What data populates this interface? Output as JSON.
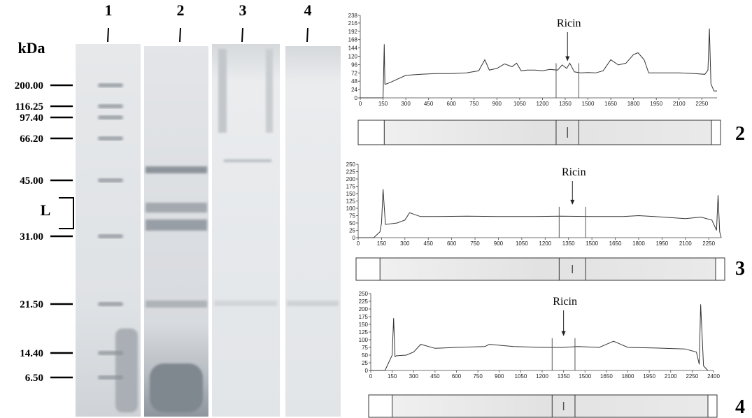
{
  "gel": {
    "unit_label": "kDa",
    "lanes": [
      "1",
      "2",
      "3",
      "4"
    ],
    "markers": [
      {
        "value": 200,
        "label": "200.00"
      },
      {
        "value": 116.25,
        "label": "116.25"
      },
      {
        "value": 97.4,
        "label": "97.40"
      },
      {
        "value": 66.2,
        "label": "66.20"
      },
      {
        "value": 45,
        "label": "45.00"
      },
      {
        "value": 31,
        "label": "31.00"
      },
      {
        "value": 21.5,
        "label": "21.50"
      },
      {
        "value": 14.4,
        "label": "14.40"
      },
      {
        "value": 6.5,
        "label": "6.50"
      }
    ],
    "bracket_label": "L"
  },
  "chart_data": [
    {
      "type": "line",
      "panel_label": "2",
      "annotation": "Ricin",
      "ricin_region": [
        1290,
        1440
      ],
      "xlim": [
        0,
        2350
      ],
      "xticks": [
        0,
        150,
        300,
        450,
        600,
        750,
        900,
        1050,
        1200,
        1350,
        1500,
        1650,
        1800,
        1950,
        2100,
        2250
      ],
      "ylim": [
        0,
        238
      ],
      "yticks": [
        0,
        24,
        48,
        72,
        96,
        120,
        144,
        168,
        192,
        216,
        238
      ],
      "x": [
        0,
        150,
        158,
        162,
        170,
        200,
        300,
        400,
        500,
        600,
        700,
        780,
        820,
        850,
        900,
        950,
        1000,
        1030,
        1060,
        1100,
        1150,
        1200,
        1250,
        1300,
        1330,
        1360,
        1380,
        1410,
        1450,
        1500,
        1550,
        1600,
        1650,
        1700,
        1750,
        1800,
        1830,
        1870,
        1900,
        2000,
        2100,
        2200,
        2270,
        2290,
        2300,
        2310,
        2330,
        2350
      ],
      "series": [
        {
          "color": "#333333",
          "values": [
            0,
            0,
            155,
            40,
            40,
            45,
            65,
            68,
            70,
            70,
            72,
            78,
            110,
            80,
            85,
            98,
            90,
            100,
            78,
            80,
            80,
            78,
            82,
            80,
            95,
            85,
            100,
            75,
            72,
            73,
            72,
            78,
            110,
            95,
            100,
            125,
            130,
            110,
            72,
            72,
            72,
            70,
            68,
            80,
            200,
            40,
            20,
            20
          ]
        }
      ]
    },
    {
      "type": "line",
      "panel_label": "3",
      "annotation": "Ricin",
      "ricin_region": [
        1290,
        1460
      ],
      "xlim": [
        0,
        2330
      ],
      "xticks": [
        0,
        150,
        300,
        450,
        600,
        750,
        900,
        1050,
        1200,
        1350,
        1500,
        1650,
        1800,
        1950,
        2100,
        2250
      ],
      "ylim": [
        0,
        250
      ],
      "yticks": [
        0,
        25,
        50,
        75,
        100,
        125,
        150,
        175,
        200,
        225,
        250
      ],
      "x": [
        0,
        100,
        140,
        150,
        160,
        175,
        250,
        300,
        330,
        400,
        500,
        700,
        900,
        1100,
        1300,
        1500,
        1700,
        1800,
        1900,
        2100,
        2200,
        2270,
        2300,
        2310,
        2320,
        2330
      ],
      "series": [
        {
          "color": "#333333",
          "values": [
            0,
            0,
            20,
            50,
            165,
            45,
            50,
            60,
            85,
            72,
            72,
            73,
            72,
            72,
            73,
            72,
            72,
            75,
            72,
            65,
            70,
            60,
            25,
            145,
            20,
            0
          ]
        }
      ]
    },
    {
      "type": "line",
      "panel_label": "4",
      "annotation": "Ricin",
      "ricin_region": [
        1270,
        1430
      ],
      "xlim": [
        0,
        2400
      ],
      "xticks": [
        0,
        150,
        300,
        450,
        600,
        750,
        900,
        1050,
        1200,
        1350,
        1500,
        1650,
        1800,
        1950,
        2100,
        2250,
        2400
      ],
      "ylim": [
        0,
        250
      ],
      "yticks": [
        0,
        25,
        50,
        75,
        100,
        125,
        150,
        175,
        200,
        225,
        250
      ],
      "x": [
        0,
        100,
        150,
        160,
        170,
        180,
        250,
        300,
        350,
        450,
        600,
        800,
        830,
        1000,
        1200,
        1350,
        1450,
        1600,
        1650,
        1700,
        1800,
        2000,
        2200,
        2280,
        2300,
        2310,
        2330,
        2360
      ],
      "series": [
        {
          "color": "#333333",
          "values": [
            0,
            0,
            50,
            170,
            45,
            48,
            50,
            60,
            85,
            72,
            75,
            78,
            85,
            78,
            75,
            75,
            78,
            75,
            85,
            95,
            75,
            73,
            70,
            60,
            20,
            215,
            15,
            0
          ]
        }
      ]
    }
  ]
}
